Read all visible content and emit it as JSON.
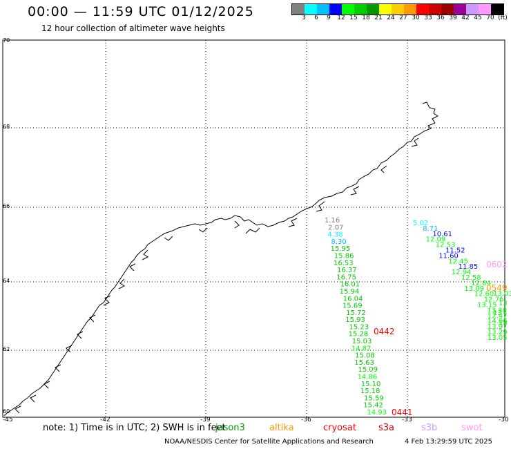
{
  "header": {
    "title": "00:00 — 11:59 UTC 01/12/2025",
    "subtitle": "12 hour collection of altimeter wave heights"
  },
  "color_scale": {
    "colors": [
      "#808080",
      "#00ffff",
      "#00bfff",
      "#0000ff",
      "#00ff00",
      "#00cc00",
      "#009900",
      "#ffff00",
      "#ffcc00",
      "#ff9900",
      "#ff0000",
      "#cc0000",
      "#990000",
      "#990099",
      "#cc99ff",
      "#ff99ff",
      "#000000"
    ],
    "labels": [
      "3",
      "6",
      "9",
      "12",
      "15",
      "18",
      "21",
      "24",
      "27",
      "30",
      "33",
      "36",
      "39",
      "42",
      "45",
      "70",
      "(ft)"
    ]
  },
  "axes": {
    "lat_labels": [
      "70",
      "68",
      "66",
      "64",
      "62",
      "60"
    ],
    "lon_labels": [
      "-45",
      "-42",
      "-39",
      "-36",
      "-33",
      "-30"
    ]
  },
  "tracks": {
    "west_values": [
      "1.16",
      "2.07",
      "4.38",
      "8.30",
      "15.95",
      "15.86",
      "16.53",
      "16.37",
      "16.75",
      "16.01",
      "15.94",
      "16.04",
      "15.69",
      "15.72",
      "15.93",
      "15.23",
      "15.28",
      "15.03",
      "14.87",
      "15.08",
      "15.63",
      "15.09",
      "14.86",
      "15.10",
      "15.18",
      "15.59",
      "15.42",
      "14.93"
    ],
    "west_times": [
      "0442",
      "0441"
    ],
    "east_values": [
      "5.02",
      "8.71",
      "10.61",
      "12.09",
      "12.53",
      "11.52",
      "11.60",
      "12.45",
      "11.85",
      "12.94",
      "12.58",
      "12.84",
      "13.09",
      "12.60",
      "12.76",
      "13.15",
      "13.38",
      "12.47",
      "14.06",
      "13.97",
      "13.29",
      "13.05"
    ],
    "east_times": [
      "0602",
      "0549"
    ],
    "east_edge_values": [
      "13.03",
      "13",
      "13",
      "13"
    ]
  },
  "footer": {
    "note": "note: 1) Time is in UTC; 2) SWH is in feet",
    "satellites": [
      {
        "name": "jason3",
        "color": "#009900"
      },
      {
        "name": "altika",
        "color": "#ff9900"
      },
      {
        "name": "cryosat",
        "color": "#ff0000"
      },
      {
        "name": "s3a",
        "color": "#cc0000"
      },
      {
        "name": "s3b",
        "color": "#cc99ff"
      },
      {
        "name": "swot",
        "color": "#ff99ff"
      }
    ],
    "credit": "NOAA/NESDIS Center for Satellite Applications and Research",
    "generated": "4 Feb 13:29:59 UTC 2025"
  }
}
